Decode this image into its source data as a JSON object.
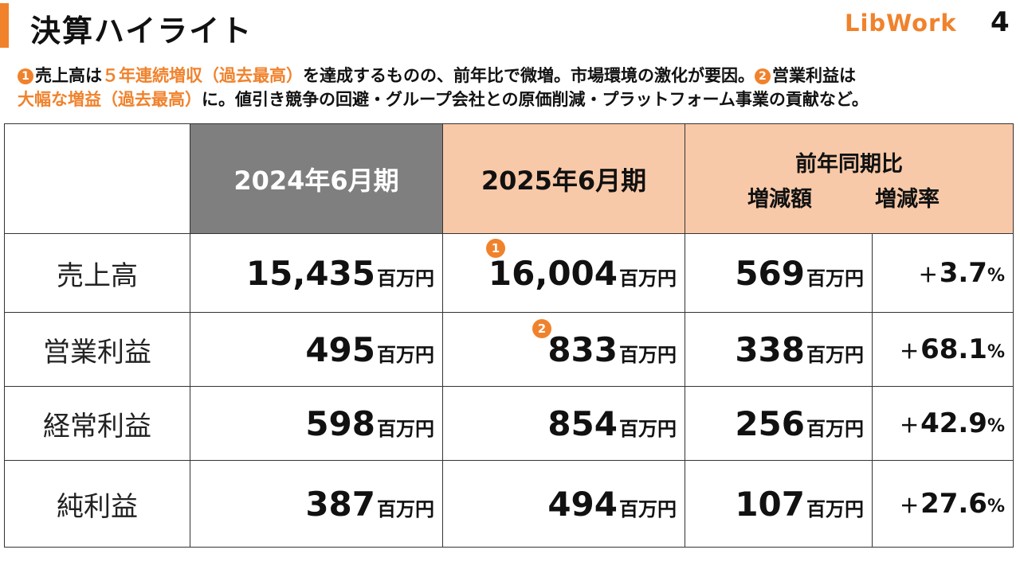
{
  "header": {
    "title": "決算ハイライト",
    "logo": "LibWork",
    "page_number": "4"
  },
  "summary": {
    "marker1": "1",
    "part1": "売上高は",
    "hl1": "５年連続増収（過去最高）",
    "part2": "を達成するものの、前年比で微増。市場環境の激化が要因。",
    "marker2": "2",
    "part3": "営業利益は",
    "hl2": "大幅な増益（過去最高）",
    "part4": "に。値引き競争の回避・グループ会社との原価削減・プラットフォーム事業の貢献など。"
  },
  "table": {
    "headers": {
      "fy2024": "2024年6月期",
      "fy2025": "2025年6月期",
      "yoy": "前年同期比",
      "change_amount": "増減額",
      "change_rate": "増減率"
    },
    "unit": "百万円",
    "percent": "%",
    "rows": [
      {
        "label": "売上高",
        "fy2024": "15,435",
        "fy2025": "16,004",
        "change": "569",
        "sign": "＋",
        "rate": "3.7",
        "marker": "1"
      },
      {
        "label": "営業利益",
        "fy2024": "495",
        "fy2025": "833",
        "change": "338",
        "sign": "＋",
        "rate": "68.1",
        "marker": "2"
      },
      {
        "label": "経常利益",
        "fy2024": "598",
        "fy2025": "854",
        "change": "256",
        "sign": "＋",
        "rate": "42.9"
      },
      {
        "label": "純利益",
        "fy2024": "387",
        "fy2025": "494",
        "change": "107",
        "sign": "＋",
        "rate": "27.6"
      }
    ]
  },
  "colors": {
    "accent": "#f0822c",
    "header_gray": "#7f7f7f",
    "header_peach": "#f8c9a8"
  }
}
